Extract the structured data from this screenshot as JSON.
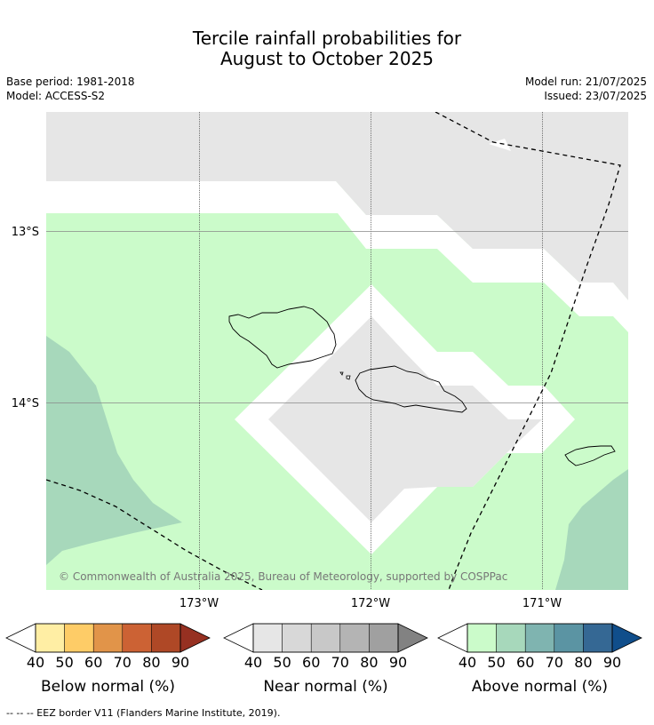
{
  "title": {
    "line1": "Tercile rainfall probabilities for",
    "line2": "August to October 2025"
  },
  "meta": {
    "base_period": "Base period: 1981-2018",
    "model": "Model: ACCESS-S2",
    "model_run": "Model run: 21/07/2025",
    "issued": "Issued: 23/07/2025"
  },
  "map": {
    "copyright": "© Commonwealth of Australia 2025, Bureau of Meteorology, supported by COSPPac",
    "lat_labels": [
      "13°S",
      "14°S"
    ],
    "lon_labels": [
      "173°W",
      "172°W",
      "171°W"
    ]
  },
  "legends": [
    {
      "label": "Below normal (%)",
      "ticks": [
        "40",
        "50",
        "60",
        "70",
        "80",
        "90"
      ],
      "colors": [
        "#ffffff",
        "#ffeea4",
        "#fecc67",
        "#e19449",
        "#cc6234",
        "#af4826",
        "#963021"
      ]
    },
    {
      "label": "Near normal (%)",
      "ticks": [
        "40",
        "50",
        "60",
        "70",
        "80",
        "90"
      ],
      "colors": [
        "#ffffff",
        "#e6e6e6",
        "#d8d8d8",
        "#c8c8c8",
        "#b4b4b4",
        "#a0a0a0",
        "#828282"
      ]
    },
    {
      "label": "Above normal (%)",
      "ticks": [
        "40",
        "50",
        "60",
        "70",
        "80",
        "90"
      ],
      "colors": [
        "#ffffff",
        "#cbfbca",
        "#a7d8bb",
        "#7fb4b0",
        "#5b94a3",
        "#356894",
        "#104e8b"
      ]
    }
  ],
  "footer": "--  --  -- EEZ border V11 (Flanders Marine Institute, 2019)."
}
